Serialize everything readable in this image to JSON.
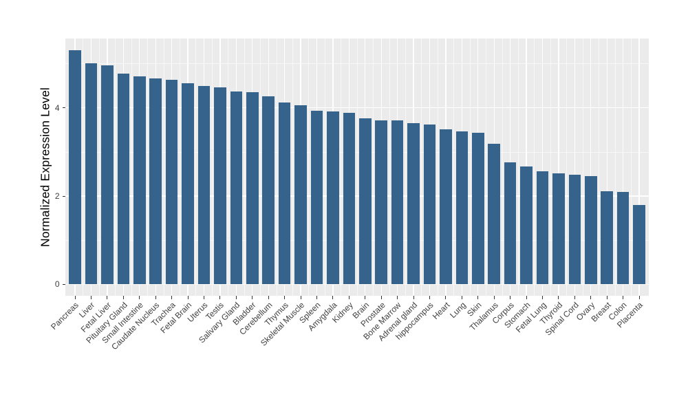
{
  "figure": {
    "background_color": "#FFFFFF",
    "panel_background_color": "#EBEBEB",
    "gridline_color": "#FFFFFF",
    "bar_color": "#36638B",
    "axis_text_color": "#404040",
    "axis_title_color": "#000000"
  },
  "chart_data": {
    "type": "bar",
    "title": "",
    "xlabel": "",
    "ylabel": "Normalized Expression Level",
    "ylim": [
      0,
      5.57
    ],
    "yticks": [
      0,
      2,
      4
    ],
    "ytick_labels": [
      "0",
      "2",
      "4"
    ],
    "yminor": [
      1,
      3,
      5
    ],
    "grid": true,
    "legend_position": "none",
    "categories": [
      "Pancreas",
      "Liver",
      "Fetal Liver",
      "Pituitary Gland",
      "Small Intestine",
      "Caudate Nucleus",
      "Trachea",
      "Fetal Brain",
      "Uterus",
      "Testis",
      "Salivary Gland",
      "Bladder",
      "Cerebellum",
      "Thymus",
      "Skeletal Muscle",
      "Spleen",
      "Amygdala",
      "Kidney",
      "Brain",
      "Prostate",
      "Bone Marrow",
      "Adrenal gland",
      "hippocampus",
      "Heart",
      "Lung",
      "Skin",
      "Thalamus",
      "Corpus",
      "Stomach",
      "Fetal Lung",
      "Thyroid",
      "Spinal Cord",
      "Ovary",
      "Breast",
      "Colon",
      "Placenta"
    ],
    "values": [
      5.3,
      5.01,
      4.96,
      4.78,
      4.72,
      4.67,
      4.64,
      4.56,
      4.49,
      4.46,
      4.37,
      4.35,
      4.26,
      4.12,
      4.06,
      3.94,
      3.92,
      3.89,
      3.76,
      3.72,
      3.71,
      3.66,
      3.63,
      3.52,
      3.47,
      3.43,
      3.18,
      2.76,
      2.67,
      2.56,
      2.52,
      2.48,
      2.46,
      2.11,
      2.1,
      1.8
    ]
  }
}
